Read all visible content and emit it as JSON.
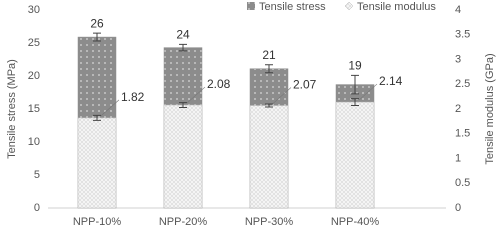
{
  "chart_data": {
    "type": "bar",
    "categories": [
      "NPP-10%",
      "NPP-20%",
      "NPP-30%",
      "NPP-40%"
    ],
    "series": [
      {
        "name": "Tensile stress",
        "color": "#8c8c8c",
        "values": [
          25.9,
          24.3,
          21.1,
          18.7
        ],
        "value_labels": [
          "26",
          "24",
          "21",
          "19"
        ],
        "errors": [
          0.6,
          0.5,
          0.6,
          1.4
        ]
      },
      {
        "name": "Tensile modulus",
        "color": "#efefef",
        "axis": "y2",
        "values": [
          1.82,
          2.08,
          2.07,
          2.14
        ],
        "errors": [
          0.05,
          0.05,
          0.03,
          0.07
        ]
      }
    ],
    "ylabel": "Tensile stress (MPa)",
    "y2label": "Tensile modulus (GPa)",
    "ylim": [
      0,
      30
    ],
    "yticks": [
      0,
      5,
      10,
      15,
      20,
      25,
      30
    ],
    "y2lim": [
      0,
      4
    ],
    "y2ticks": [
      0,
      0.5,
      1,
      1.5,
      2,
      2.5,
      3,
      3.5,
      4
    ],
    "legend": "top"
  }
}
